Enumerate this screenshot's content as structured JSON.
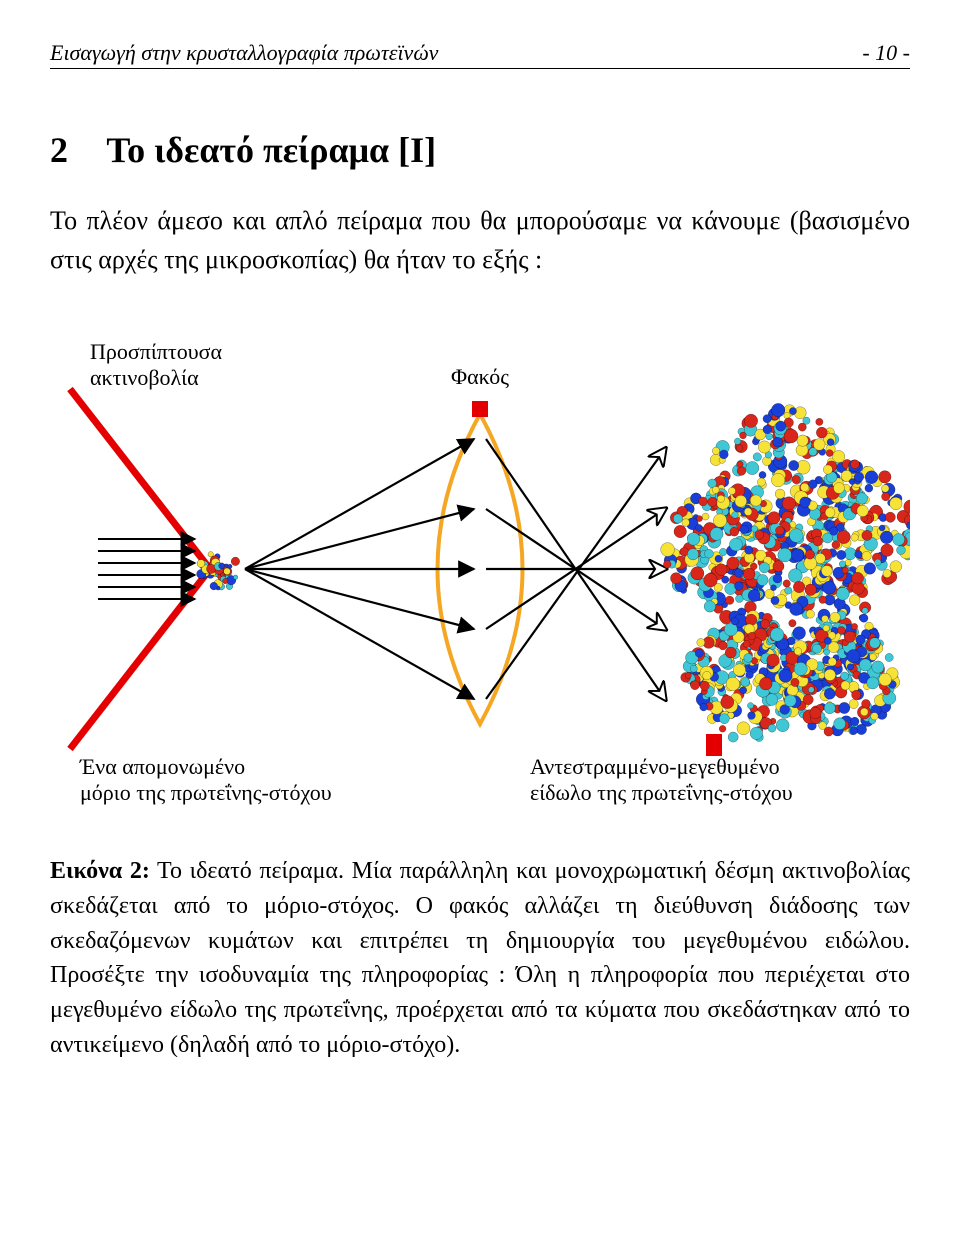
{
  "header": {
    "running_title": "Εισαγωγή στην κρυσταλλογραφία πρωτεϊνών",
    "page_number": "- 10 -"
  },
  "section": {
    "number": "2",
    "title": "Το ιδεατό πείραμα [Ι]"
  },
  "intro": "Το πλέον άμεσο και απλό πείραμα που θα μπορούσαμε να κάνουμε (βασισμένο στις αρχές της μικροσκοπίας) θα ήταν το εξής :",
  "diagram": {
    "labels": {
      "radiation": "Προσπίπτουσα\nακτινοβολία",
      "lens": "Φακός",
      "sample": "Ένα απομονωμένο\nμόριο της πρωτεΐνης-στόχου",
      "image": "Αντεστραμμένο-μεγεθυμένο\nείδωλο της πρωτεΐνης-στόχου"
    },
    "colors": {
      "red_accent": "#e40000",
      "lens_stroke": "#f5a623",
      "arrow": "#000000",
      "protein_cyan": "#3fc7d6",
      "protein_blue": "#1a3fd8",
      "protein_red": "#d8261a",
      "protein_yellow": "#f7e236",
      "bg": "#ffffff"
    },
    "label_fontsize": 22
  },
  "caption": {
    "label": "Εικόνα 2:",
    "text": "Το ιδεατό πείραμα. Μία παράλληλη και μονοχρωματική δέσμη ακτινοβολίας σκεδάζεται από το μόριο-στόχος. Ο φακός αλλάζει τη διεύθυνση διάδοσης των σκεδαζόμενων κυμάτων και επιτρέπει τη δημιουργία του μεγεθυμένου ειδώλου. Προσέξτε την ισοδυναμία της πληροφορίας : Όλη η πληροφορία που περιέχεται στο μεγεθυμένο είδωλο της πρωτεΐνης, προέρχεται από τα κύματα που σκεδάστηκαν από το αντικείμενο (δηλαδή από το μόριο-στόχο)."
  }
}
